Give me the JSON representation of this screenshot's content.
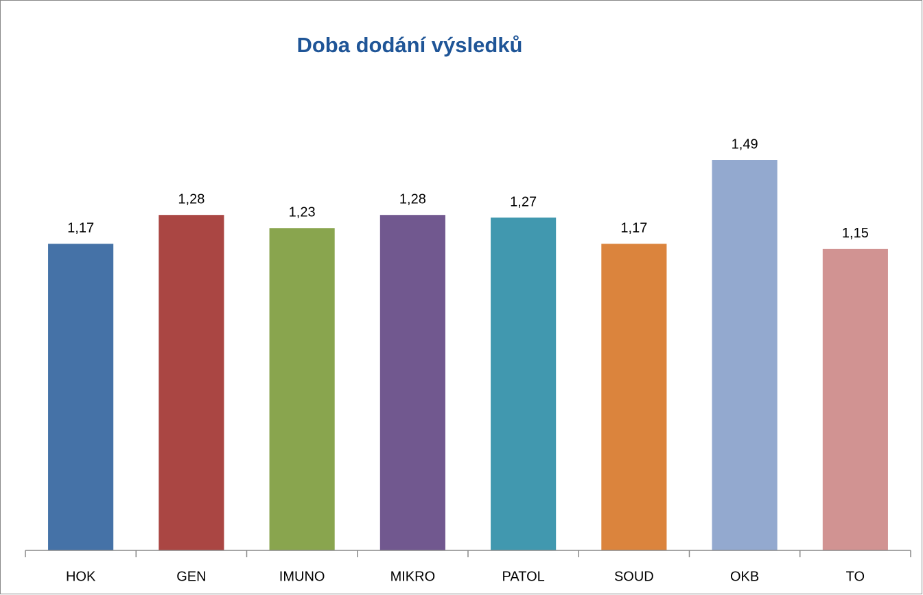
{
  "chart_data": {
    "type": "bar",
    "title": "Doba dodání výsledků",
    "categories": [
      "HOK",
      "GEN",
      "IMUNO",
      "MIKRO",
      "PATOL",
      "SOUD",
      "OKB",
      "TO"
    ],
    "values": [
      1.17,
      1.28,
      1.23,
      1.28,
      1.27,
      1.17,
      1.49,
      1.15
    ],
    "value_labels": [
      "1,17",
      "1,28",
      "1,23",
      "1,28",
      "1,27",
      "1,17",
      "1,49",
      "1,15"
    ],
    "colors": [
      "#4572a7",
      "#aa4643",
      "#89a54e",
      "#71588f",
      "#4198af",
      "#db843d",
      "#93a9cf",
      "#d19392"
    ],
    "ylim": [
      0,
      1.6
    ]
  }
}
